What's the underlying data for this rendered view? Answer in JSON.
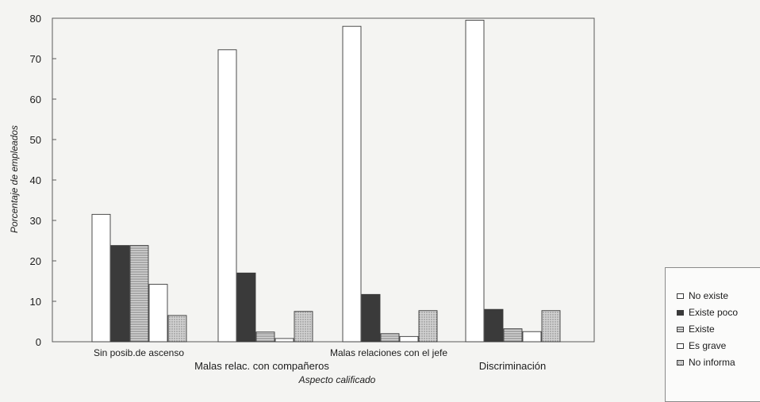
{
  "chart_data": {
    "type": "bar",
    "categories": [
      "Sin posib.de ascenso",
      "Malas relac. con compañeros",
      "Malas relaciones con el jefe",
      "Discriminación"
    ],
    "series": [
      {
        "name": "No existe",
        "values": [
          31.5,
          72.2,
          78.0,
          79.5
        ],
        "color": "#ffffff",
        "pattern": "none"
      },
      {
        "name": "Existe poco",
        "values": [
          23.8,
          17.0,
          11.7,
          8.0
        ],
        "color": "#3a3a3a",
        "pattern": "none"
      },
      {
        "name": "Existe",
        "values": [
          23.8,
          2.4,
          2.0,
          3.2
        ],
        "color": "#b4b4b4",
        "pattern": "hlines"
      },
      {
        "name": "Es grave",
        "values": [
          14.2,
          0.8,
          1.3,
          2.5
        ],
        "color": "#ffffff",
        "pattern": "none"
      },
      {
        "name": "No informa",
        "values": [
          6.5,
          7.5,
          7.7,
          7.7
        ],
        "color": "#c4c4c4",
        "pattern": "dots"
      }
    ],
    "xlabel": "Aspecto calificado",
    "ylabel": "Porcentaje de empleados",
    "ylim": [
      0,
      80
    ],
    "yticks": [
      0,
      10,
      20,
      30,
      40,
      50,
      60,
      70,
      80
    ],
    "grid": false,
    "legend_position": "bottom-right, outside plot"
  }
}
